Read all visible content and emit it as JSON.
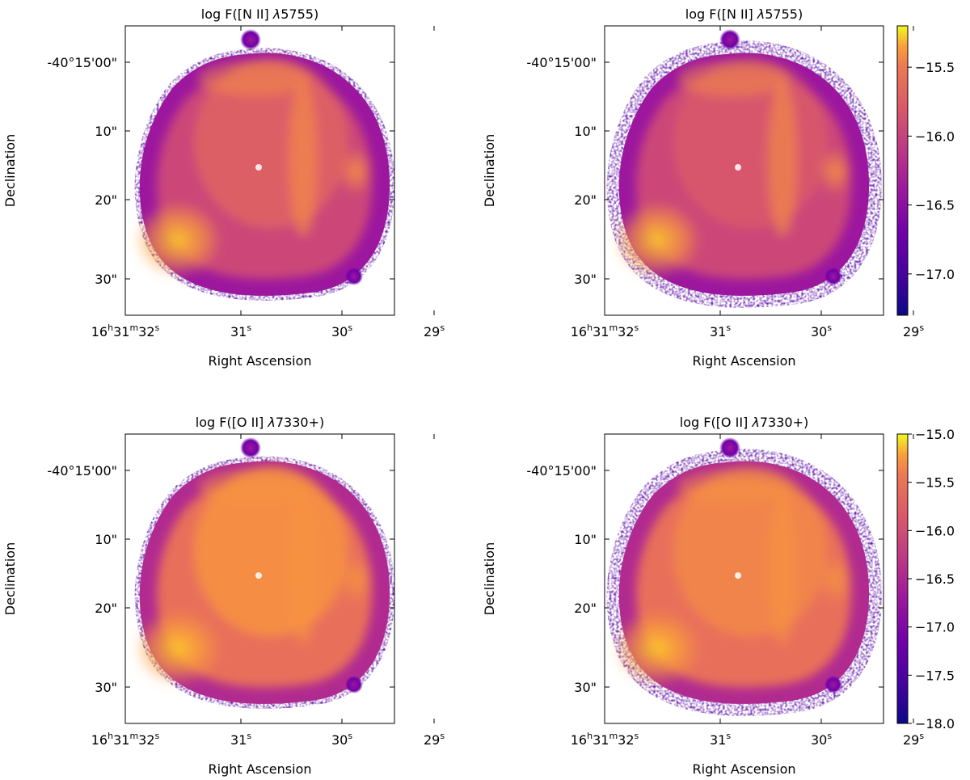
{
  "chart_data": [
    {
      "type": "heatmap",
      "title": "log F([N II] λ5755)",
      "title_prefix": "log F([N II] ",
      "title_lambda": "λ",
      "title_suffix": "5755)",
      "xlabel": "Right Ascension",
      "ylabel": "Declination",
      "x_ticks": [
        {
          "label": "16ʰ31ᵐ32ˢ",
          "base": "16",
          "h": "h",
          "m_base": "31",
          "m": "m",
          "s_base": "32",
          "s": "s"
        },
        {
          "label": "31ˢ",
          "base": "31",
          "s": "s"
        },
        {
          "label": "30ˢ",
          "base": "30",
          "s": "s"
        },
        {
          "label": "29ˢ",
          "base": "29",
          "s": "s"
        }
      ],
      "y_ticks": [
        "-40°15'00\"",
        "10\"",
        "20\"",
        "30\""
      ],
      "colorbar": null
    },
    {
      "type": "heatmap",
      "title": "log F([N II] λ5755)",
      "title_prefix": "log F([N II] ",
      "title_lambda": "λ",
      "title_suffix": "5755)",
      "xlabel": "Right Ascension",
      "ylabel": "Declination",
      "x_ticks": [
        {
          "label": "16ʰ31ᵐ32ˢ",
          "base": "16",
          "h": "h",
          "m_base": "31",
          "m": "m",
          "s_base": "32",
          "s": "s"
        },
        {
          "label": "31ˢ",
          "base": "31",
          "s": "s"
        },
        {
          "label": "30ˢ",
          "base": "30",
          "s": "s"
        },
        {
          "label": "29ˢ",
          "base": "29",
          "s": "s"
        }
      ],
      "y_ticks": [
        "-40°15'00\"",
        "10\"",
        "20\"",
        "30\""
      ],
      "colorbar": {
        "colormap": "plasma",
        "range": [
          -17.3,
          -15.2
        ],
        "ticks": [
          -15.5,
          -16.0,
          -16.5,
          -17.0
        ],
        "tick_labels": [
          "−15.5",
          "−16.0",
          "−16.5",
          "−17.0"
        ]
      }
    },
    {
      "type": "heatmap",
      "title": "log F([O II] λ7330+)",
      "title_prefix": "log F([O II] ",
      "title_lambda": "λ",
      "title_suffix": "7330+)",
      "xlabel": "Right Ascension",
      "ylabel": "Declination",
      "x_ticks": [
        {
          "label": "16ʰ31ᵐ32ˢ",
          "base": "16",
          "h": "h",
          "m_base": "31",
          "m": "m",
          "s_base": "32",
          "s": "s"
        },
        {
          "label": "31ˢ",
          "base": "31",
          "s": "s"
        },
        {
          "label": "30ˢ",
          "base": "30",
          "s": "s"
        },
        {
          "label": "29ˢ",
          "base": "29",
          "s": "s"
        }
      ],
      "y_ticks": [
        "-40°15'00\"",
        "10\"",
        "20\"",
        "30\""
      ],
      "colorbar": null
    },
    {
      "type": "heatmap",
      "title": "log F([O II] λ7330+)",
      "title_prefix": "log F([O II] ",
      "title_lambda": "λ",
      "title_suffix": "7330+)",
      "xlabel": "Right Ascension",
      "ylabel": "Declination",
      "x_ticks": [
        {
          "label": "16ʰ31ᵐ32ˢ",
          "base": "16",
          "h": "h",
          "m_base": "31",
          "m": "m",
          "s_base": "32",
          "s": "s"
        },
        {
          "label": "31ˢ",
          "base": "31",
          "s": "s"
        },
        {
          "label": "30ˢ",
          "base": "30",
          "s": "s"
        },
        {
          "label": "29ˢ",
          "base": "29",
          "s": "s"
        }
      ],
      "y_ticks": [
        "-40°15'00\"",
        "10\"",
        "20\"",
        "30\""
      ],
      "colorbar": {
        "colormap": "plasma",
        "range": [
          -18.0,
          -15.0
        ],
        "ticks": [
          -15.0,
          -15.5,
          -16.0,
          -16.5,
          -17.0,
          -17.5,
          -18.0
        ],
        "tick_labels": [
          "−15.0",
          "−15.5",
          "−16.0",
          "−16.5",
          "−17.0",
          "−17.5",
          "−18.0"
        ]
      }
    }
  ]
}
